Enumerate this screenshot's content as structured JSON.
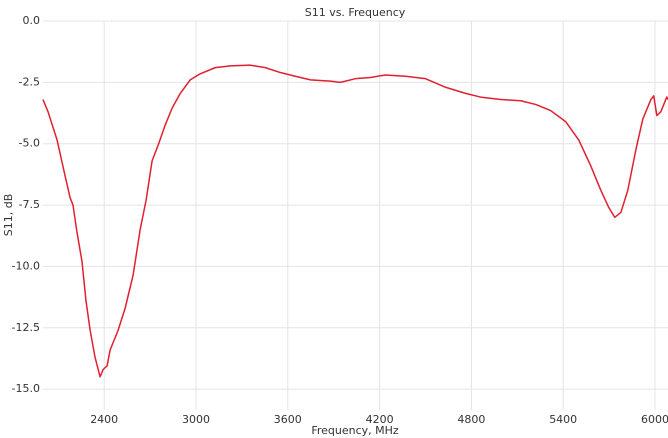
{
  "chart_data": {
    "type": "line",
    "title": "S11 vs. Frequency",
    "xlabel": "Frequency, MHz",
    "ylabel": "S11, dB",
    "color": "#e0202f",
    "grid": true,
    "xlim": [
      2000,
      6085
    ],
    "ylim": [
      -15.85,
      0
    ],
    "xticks": [
      2400,
      3000,
      3600,
      4200,
      4800,
      5400,
      6000
    ],
    "yticks": [
      {
        "value": 0,
        "label": "0.0"
      },
      -2.5,
      {
        "value": -5,
        "label": "-5.0"
      },
      -7.5,
      {
        "value": -10,
        "label": "-10.0"
      },
      -12.5,
      {
        "value": -15,
        "label": "-15.0"
      }
    ],
    "x": [
      2000,
      2033,
      2092,
      2144,
      2177,
      2196,
      2222,
      2255,
      2281,
      2308,
      2340,
      2373,
      2393,
      2419,
      2439,
      2491,
      2537,
      2589,
      2635,
      2674,
      2713,
      2753,
      2798,
      2844,
      2897,
      2962,
      3028,
      3126,
      3224,
      3355,
      3453,
      3551,
      3649,
      3748,
      3878,
      3944,
      4042,
      4140,
      4238,
      4369,
      4500,
      4631,
      4762,
      4860,
      4991,
      5122,
      5220,
      5318,
      5416,
      5502,
      5580,
      5646,
      5698,
      5737,
      5777,
      5822,
      5875,
      5920,
      5973,
      5992,
      6012,
      6038,
      6077,
      6085
    ],
    "values": [
      -3.2,
      -3.7,
      -4.85,
      -6.3,
      -7.2,
      -7.5,
      -8.6,
      -9.8,
      -11.4,
      -12.6,
      -13.7,
      -14.5,
      -14.2,
      -14.05,
      -13.4,
      -12.6,
      -11.7,
      -10.35,
      -8.5,
      -7.3,
      -5.7,
      -5.05,
      -4.25,
      -3.55,
      -2.95,
      -2.4,
      -2.15,
      -1.9,
      -1.83,
      -1.8,
      -1.9,
      -2.1,
      -2.25,
      -2.4,
      -2.45,
      -2.5,
      -2.35,
      -2.3,
      -2.2,
      -2.25,
      -2.35,
      -2.7,
      -2.95,
      -3.1,
      -3.2,
      -3.25,
      -3.4,
      -3.65,
      -4.1,
      -4.85,
      -5.9,
      -6.9,
      -7.6,
      -8.0,
      -7.8,
      -6.9,
      -5.25,
      -4.0,
      -3.2,
      -3.05,
      -3.85,
      -3.7,
      -3.1,
      -3.2
    ]
  }
}
